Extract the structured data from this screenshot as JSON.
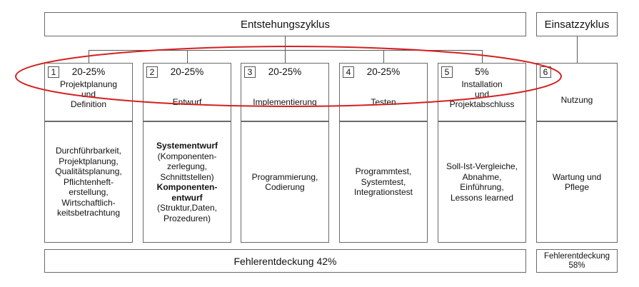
{
  "title": "Entstehungszyklus",
  "title_right": "Einsatzzyklus",
  "phases": [
    {
      "num": "1",
      "pct": "20-25%",
      "name": [
        "Projektplanung",
        "und",
        "Definition"
      ],
      "desc": [
        {
          "t": "Durchführbarkeit,"
        },
        {
          "t": "Projektplanung,"
        },
        {
          "t": "Qualitätsplanung,"
        },
        {
          "t": "Pflichtenheft-"
        },
        {
          "t": "erstellung,"
        },
        {
          "t": "Wirtschaftlich-"
        },
        {
          "t": "keitsbetrachtung"
        }
      ]
    },
    {
      "num": "2",
      "pct": "20-25%",
      "name": [
        "Entwurf"
      ],
      "desc": [
        {
          "t": "Systementwurf",
          "b": true
        },
        {
          "t": "(Komponenten-"
        },
        {
          "t": "zerlegung,"
        },
        {
          "t": "Schnittstellen)"
        },
        {
          "t": "Komponenten-",
          "b": true
        },
        {
          "t": "entwurf",
          "b": true
        },
        {
          "t": "(Struktur,Daten,"
        },
        {
          "t": "Prozeduren)"
        }
      ]
    },
    {
      "num": "3",
      "pct": "20-25%",
      "name": [
        "Implementierung"
      ],
      "desc": [
        {
          "t": "Programmierung,"
        },
        {
          "t": "Codierung"
        }
      ]
    },
    {
      "num": "4",
      "pct": "20-25%",
      "name": [
        "Testen"
      ],
      "desc": [
        {
          "t": "Programmtest,"
        },
        {
          "t": "Systemtest,"
        },
        {
          "t": "Integrationstest"
        }
      ]
    },
    {
      "num": "5",
      "pct": "5%",
      "name": [
        "Installation",
        "und",
        "Projektabschluss"
      ],
      "desc": [
        {
          "t": "Soll-Ist-Vergleiche,"
        },
        {
          "t": "Abnahme,"
        },
        {
          "t": "Einführung,"
        },
        {
          "t": "Lessons learned"
        }
      ]
    },
    {
      "num": "6",
      "pct": "",
      "name": [
        "Nutzung"
      ],
      "desc": [
        {
          "t": "Wartung und"
        },
        {
          "t": "Pflege"
        }
      ]
    }
  ],
  "footer_left": "Fehlerentdeckung 42%",
  "footer_right": [
    "Fehlerentdeckung",
    "58%"
  ],
  "colors": {
    "oval": "#d42020",
    "border": "#6a6a6a"
  }
}
